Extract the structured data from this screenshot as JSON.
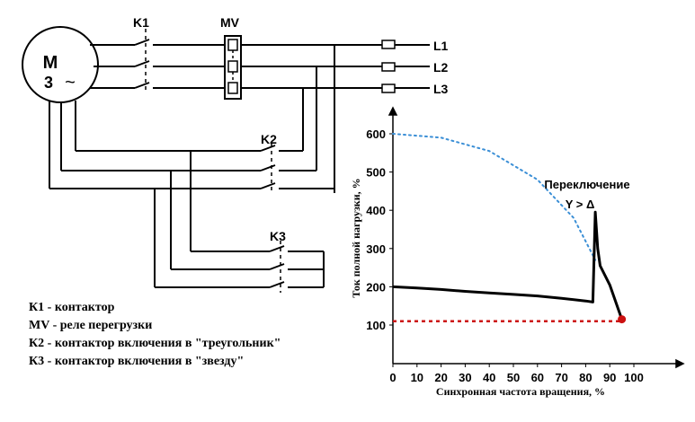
{
  "motor": {
    "line1": "M",
    "line2": "3",
    "symbol": "~"
  },
  "components": {
    "k1": "K1",
    "mv": "MV",
    "k2": "K2",
    "k3": "K3"
  },
  "lines": [
    "L1",
    "L2",
    "L3"
  ],
  "legend": [
    "К1 - контактор",
    "MV - реле перегрузки",
    "К2 - контактор включения в \"треугольник\"",
    "К3 - контактор включения в \"звезду\""
  ],
  "colors": {
    "star_curve": "#3b8fd6",
    "reference_line": "#cc1111",
    "main_curve": "#000000"
  },
  "chart_data": {
    "type": "line",
    "xlabel": "Синхронная частота вращения, %",
    "ylabel": "Ток полной нагрузки, %",
    "x_ticks": [
      "0",
      "10",
      "20",
      "30",
      "40",
      "50",
      "60",
      "70",
      "80",
      "90",
      "100"
    ],
    "y_ticks": [
      "100",
      "200",
      "300",
      "400",
      "500",
      "600"
    ],
    "xlim": [
      0,
      100
    ],
    "ylim": [
      0,
      650
    ],
    "annotation": {
      "line1": "Переключение",
      "line2": "Y > Δ"
    },
    "series": [
      {
        "style": "dotted-blue",
        "x": [
          0,
          20,
          40,
          60,
          75,
          84
        ],
        "y": [
          600,
          590,
          555,
          480,
          380,
          270
        ]
      },
      {
        "style": "solid-black",
        "x": [
          0,
          10,
          20,
          30,
          40,
          50,
          60,
          70,
          80,
          83,
          84,
          85,
          86,
          90,
          95
        ],
        "y": [
          200,
          197,
          193,
          188,
          184,
          180,
          176,
          170,
          163,
          160,
          395,
          300,
          255,
          205,
          115
        ]
      },
      {
        "style": "dotted-red",
        "x": [
          0,
          95
        ],
        "y": [
          110,
          110
        ]
      }
    ],
    "end_point": {
      "x": 95,
      "y": 115
    }
  }
}
